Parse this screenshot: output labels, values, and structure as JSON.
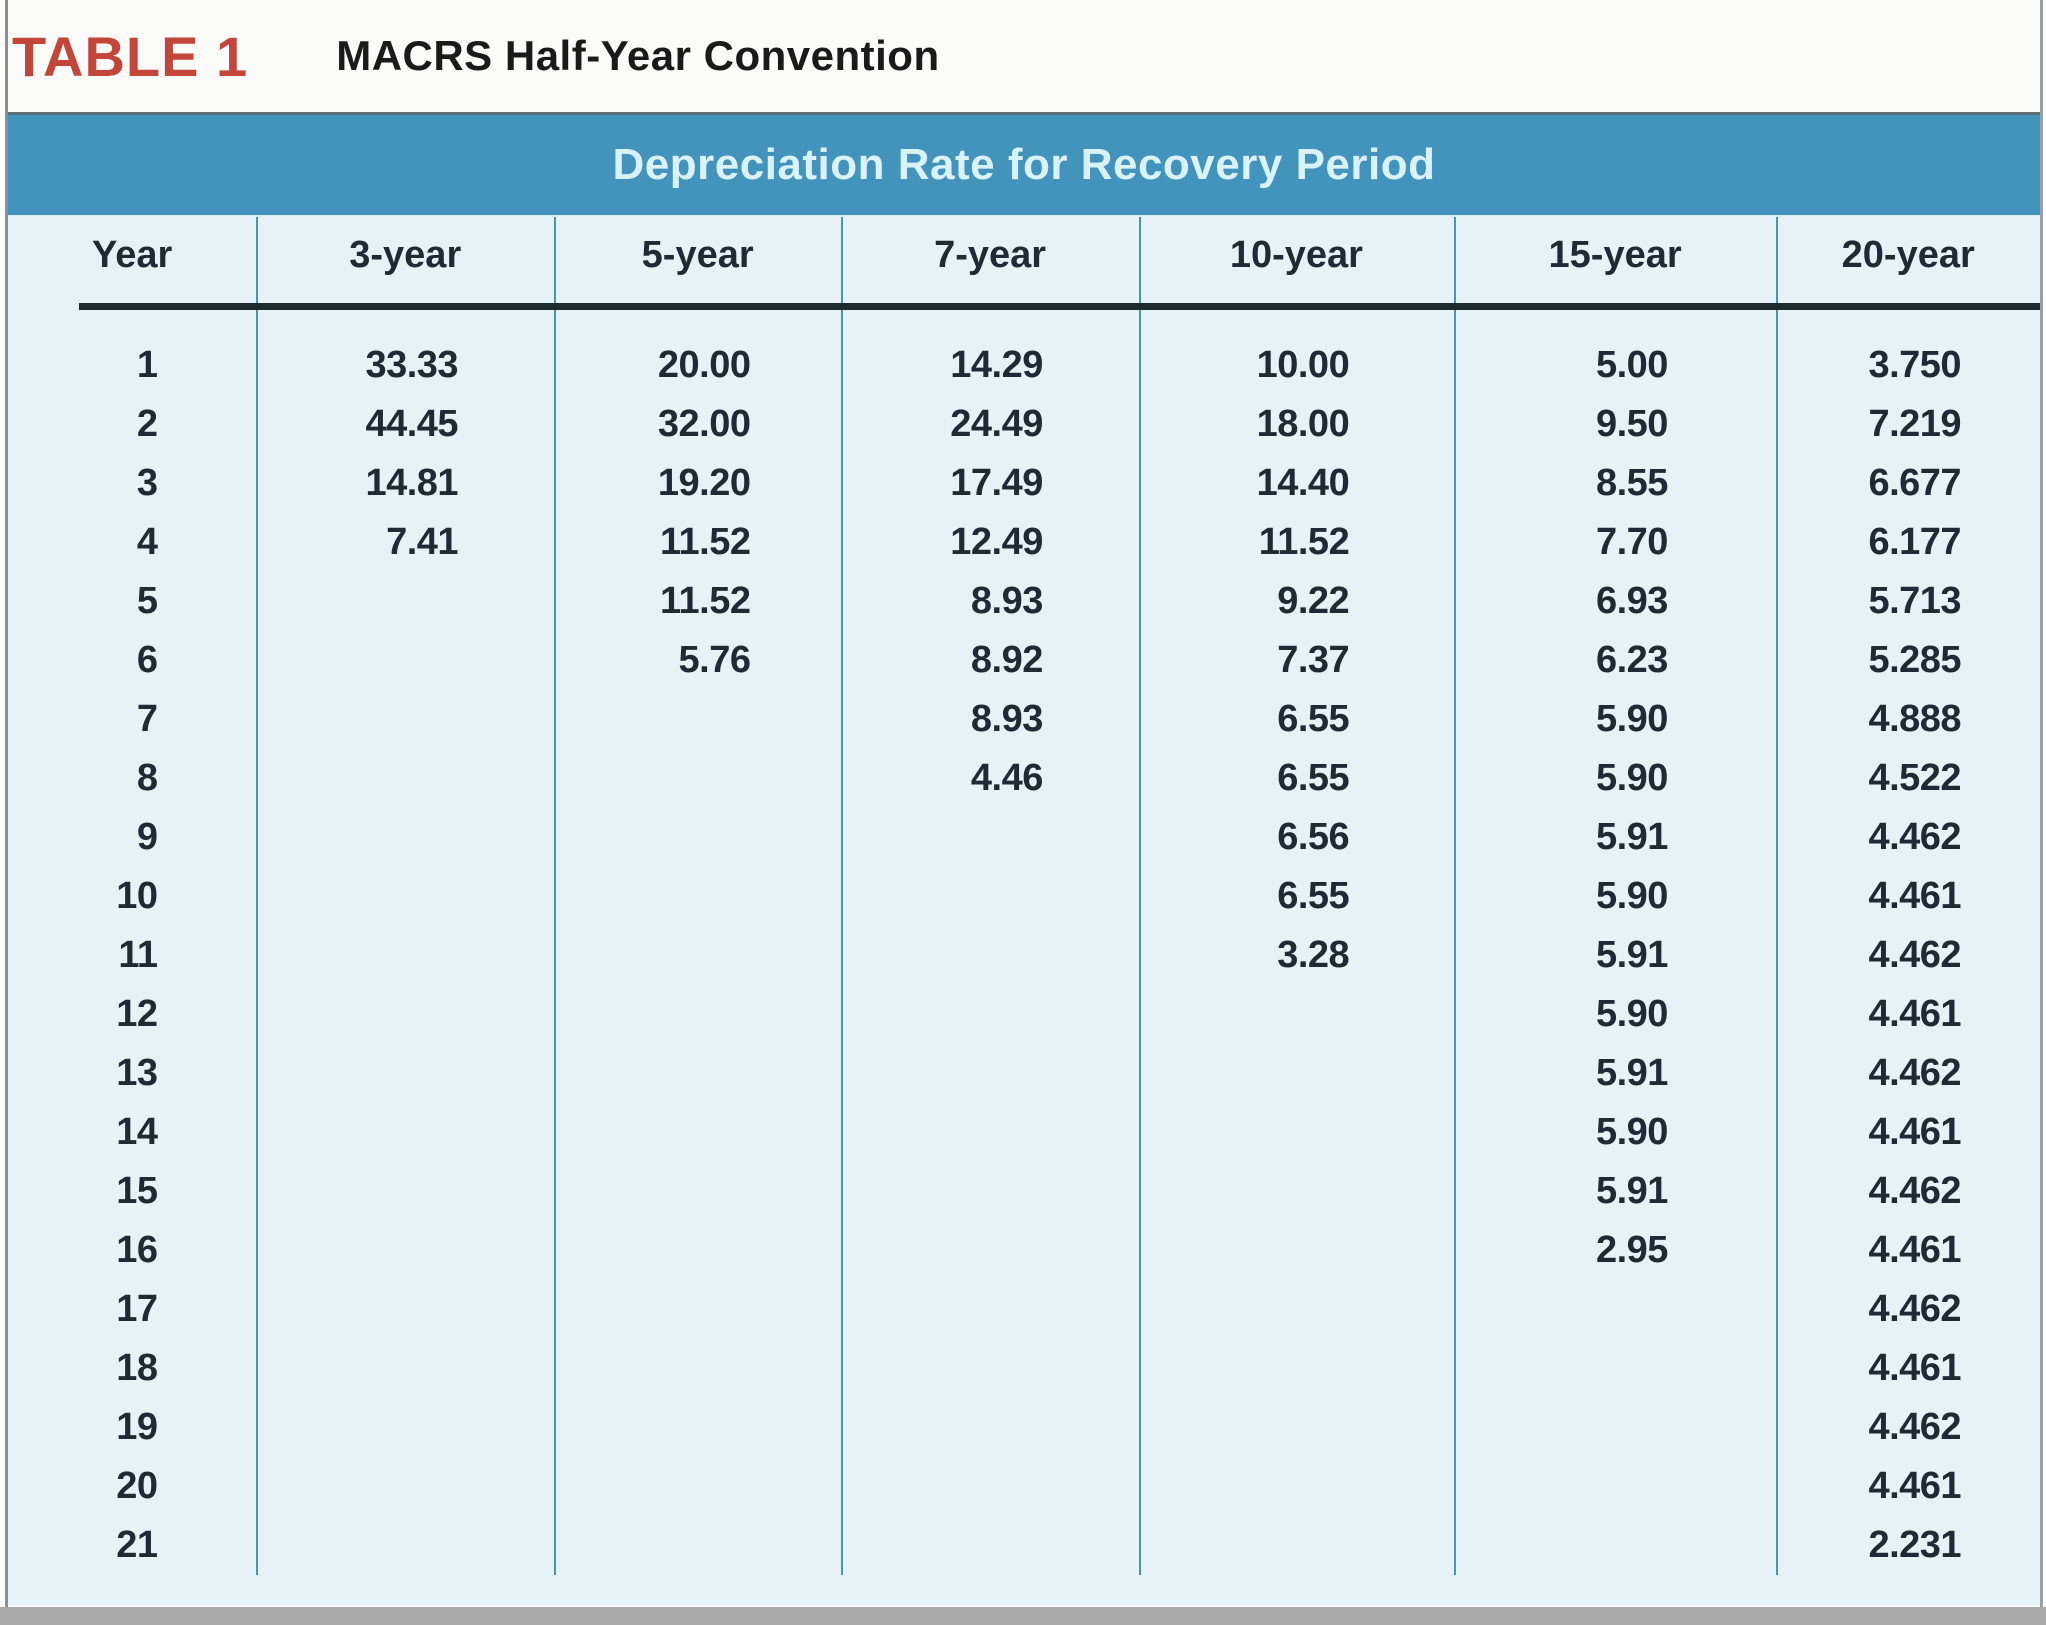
{
  "title": {
    "label": "TABLE 1",
    "text": "MACRS Half-Year Convention"
  },
  "band": {
    "title": "Depreciation Rate for Recovery Period"
  },
  "table": {
    "columns": [
      "Year",
      "3-year",
      "5-year",
      "7-year",
      "10-year",
      "15-year",
      "20-year"
    ],
    "rows": [
      [
        "1",
        "33.33",
        "20.00",
        "14.29",
        "10.00",
        "5.00",
        "3.750"
      ],
      [
        "2",
        "44.45",
        "32.00",
        "24.49",
        "18.00",
        "9.50",
        "7.219"
      ],
      [
        "3",
        "14.81",
        "19.20",
        "17.49",
        "14.40",
        "8.55",
        "6.677"
      ],
      [
        "4",
        "7.41",
        "11.52",
        "12.49",
        "11.52",
        "7.70",
        "6.177"
      ],
      [
        "5",
        "",
        "11.52",
        "8.93",
        "9.22",
        "6.93",
        "5.713"
      ],
      [
        "6",
        "",
        "5.76",
        "8.92",
        "7.37",
        "6.23",
        "5.285"
      ],
      [
        "7",
        "",
        "",
        "8.93",
        "6.55",
        "5.90",
        "4.888"
      ],
      [
        "8",
        "",
        "",
        "4.46",
        "6.55",
        "5.90",
        "4.522"
      ],
      [
        "9",
        "",
        "",
        "",
        "6.56",
        "5.91",
        "4.462"
      ],
      [
        "10",
        "",
        "",
        "",
        "6.55",
        "5.90",
        "4.461"
      ],
      [
        "11",
        "",
        "",
        "",
        "3.28",
        "5.91",
        "4.462"
      ],
      [
        "12",
        "",
        "",
        "",
        "",
        "5.90",
        "4.461"
      ],
      [
        "13",
        "",
        "",
        "",
        "",
        "5.91",
        "4.462"
      ],
      [
        "14",
        "",
        "",
        "",
        "",
        "5.90",
        "4.461"
      ],
      [
        "15",
        "",
        "",
        "",
        "",
        "5.91",
        "4.462"
      ],
      [
        "16",
        "",
        "",
        "",
        "",
        "2.95",
        "4.461"
      ],
      [
        "17",
        "",
        "",
        "",
        "",
        "",
        "4.462"
      ],
      [
        "18",
        "",
        "",
        "",
        "",
        "",
        "4.461"
      ],
      [
        "19",
        "",
        "",
        "",
        "",
        "",
        "4.462"
      ],
      [
        "20",
        "",
        "",
        "",
        "",
        "",
        "4.461"
      ],
      [
        "21",
        "",
        "",
        "",
        "",
        "",
        "2.231"
      ]
    ]
  },
  "colors": {
    "accent_red": "#c2473a",
    "band_blue": "#4394bd",
    "band_text": "#d9f2fb",
    "table_background": "#e5f2f8",
    "divider_teal": "#4a95ad",
    "heavy_rule": "#1c2a31",
    "text_dark": "#1e2b36",
    "scan_edge_gray": "#a8a8a8"
  }
}
